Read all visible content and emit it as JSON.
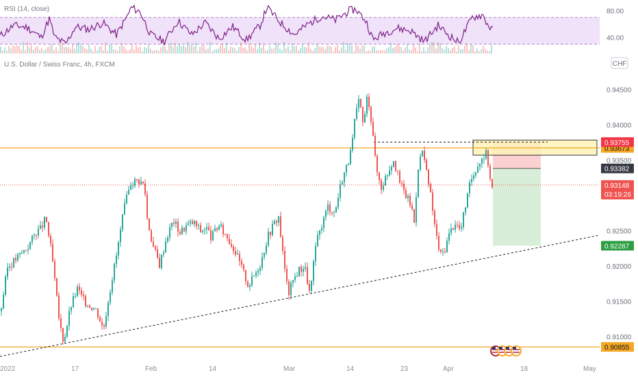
{
  "header": {
    "symbol_title": "U.S. Dollar / Swiss Franc, 4h, FXCM",
    "currency_badge": "CHF",
    "rsi_title": "RSI (14, close)"
  },
  "events_icon": "us-flag-events-icon",
  "colors": {
    "up": "#26a69a",
    "down": "#ef5350",
    "rsi_line": "#7e1f86",
    "rsi_band": "#e9d8f7",
    "level_orange": "#f5a623",
    "trend": "#131722",
    "stop_zone": "#f9c4c4",
    "target_zone": "#d5ecd4",
    "supply_zone": "#fff3b8"
  },
  "chart_data": {
    "type": "candlestick",
    "title": "U.S. Dollar / Swiss Franc, 4h, FXCM",
    "y_ticks": [
      "0.94500",
      "0.94000",
      "0.93500",
      "0.93000",
      "0.92500",
      "0.92000",
      "0.91500",
      "0.91000"
    ],
    "ylim": [
      0.9072,
      0.9468
    ],
    "x_ticks": [
      "2022",
      "17",
      "Feb",
      "14",
      "Mar",
      "14",
      "23",
      "Apr",
      "18",
      "May"
    ],
    "price_path": {
      "anchors": [
        [
          0,
          0.9136
        ],
        [
          10,
          0.9198
        ],
        [
          24,
          0.9212
        ],
        [
          40,
          0.9228
        ],
        [
          52,
          0.9249
        ],
        [
          58,
          0.9252
        ],
        [
          66,
          0.9268
        ],
        [
          75,
          0.9214
        ],
        [
          86,
          0.9118
        ],
        [
          92,
          0.9093
        ],
        [
          102,
          0.9142
        ],
        [
          112,
          0.9168
        ],
        [
          122,
          0.915
        ],
        [
          140,
          0.9138
        ],
        [
          150,
          0.911
        ],
        [
          158,
          0.9158
        ],
        [
          170,
          0.922
        ],
        [
          180,
          0.928
        ],
        [
          190,
          0.9318
        ],
        [
          200,
          0.9322
        ],
        [
          210,
          0.9315
        ],
        [
          214,
          0.9268
        ],
        [
          222,
          0.923
        ],
        [
          232,
          0.9202
        ],
        [
          242,
          0.924
        ],
        [
          252,
          0.9265
        ],
        [
          262,
          0.9248
        ],
        [
          272,
          0.9258
        ],
        [
          282,
          0.9262
        ],
        [
          292,
          0.925
        ],
        [
          300,
          0.9255
        ],
        [
          308,
          0.924
        ],
        [
          318,
          0.9258
        ],
        [
          332,
          0.924
        ],
        [
          342,
          0.9222
        ],
        [
          352,
          0.9198
        ],
        [
          362,
          0.9172
        ],
        [
          372,
          0.919
        ],
        [
          380,
          0.9205
        ],
        [
          390,
          0.9242
        ],
        [
          398,
          0.9258
        ],
        [
          406,
          0.927
        ],
        [
          412,
          0.9218
        ],
        [
          420,
          0.916
        ],
        [
          428,
          0.9182
        ],
        [
          436,
          0.9195
        ],
        [
          444,
          0.92
        ],
        [
          452,
          0.9158
        ],
        [
          460,
          0.9228
        ],
        [
          470,
          0.9262
        ],
        [
          478,
          0.9285
        ],
        [
          488,
          0.9275
        ],
        [
          498,
          0.9322
        ],
        [
          505,
          0.934
        ],
        [
          512,
          0.9362
        ],
        [
          518,
          0.9412
        ],
        [
          524,
          0.9435
        ],
        [
          530,
          0.9398
        ],
        [
          536,
          0.9445
        ],
        [
          544,
          0.9388
        ],
        [
          548,
          0.934
        ],
        [
          556,
          0.9312
        ],
        [
          564,
          0.933
        ],
        [
          574,
          0.9352
        ],
        [
          582,
          0.932
        ],
        [
          592,
          0.93
        ],
        [
          600,
          0.9285
        ],
        [
          604,
          0.9262
        ],
        [
          610,
          0.9342
        ],
        [
          616,
          0.9364
        ],
        [
          620,
          0.9342
        ],
        [
          628,
          0.93
        ],
        [
          636,
          0.9245
        ],
        [
          642,
          0.9215
        ],
        [
          648,
          0.9222
        ],
        [
          656,
          0.9248
        ],
        [
          664,
          0.9262
        ],
        [
          672,
          0.925
        ],
        [
          680,
          0.9292
        ],
        [
          688,
          0.9325
        ],
        [
          696,
          0.9342
        ],
        [
          704,
          0.9355
        ],
        [
          710,
          0.936
        ],
        [
          714,
          0.9332
        ],
        [
          718,
          0.931
        ],
        [
          720,
          0.9315
        ]
      ],
      "x_start": 0,
      "x_end": 720
    },
    "levels": [
      {
        "name": "resistance",
        "value": 0.93673,
        "label": "0.93673"
      },
      {
        "name": "support",
        "value": 0.90855,
        "label": "0.90855"
      },
      {
        "name": "zone-top",
        "value": 0.93755,
        "label": "0.93755"
      },
      {
        "name": "entry",
        "value": 0.93382,
        "label": "0.93382"
      },
      {
        "name": "current",
        "value": 0.93148,
        "label": "0.93148"
      },
      {
        "name": "target",
        "value": 0.92287,
        "label": "0.92287"
      }
    ],
    "countdown": "03:19:26",
    "rsi": {
      "y_ticks": [
        "80.00",
        "40.00"
      ],
      "ylim": [
        18,
        92
      ],
      "upper": 70,
      "lower": 30,
      "anchors": [
        [
          0,
          42
        ],
        [
          20,
          58
        ],
        [
          40,
          55
        ],
        [
          60,
          40
        ],
        [
          72,
          68
        ],
        [
          80,
          40
        ],
        [
          96,
          30
        ],
        [
          110,
          56
        ],
        [
          130,
          52
        ],
        [
          150,
          62
        ],
        [
          170,
          44
        ],
        [
          185,
          70
        ],
        [
          192,
          85
        ],
        [
          205,
          78
        ],
        [
          220,
          44
        ],
        [
          240,
          34
        ],
        [
          260,
          65
        ],
        [
          280,
          44
        ],
        [
          300,
          62
        ],
        [
          320,
          38
        ],
        [
          340,
          56
        ],
        [
          360,
          36
        ],
        [
          380,
          58
        ],
        [
          390,
          85
        ],
        [
          410,
          62
        ],
        [
          430,
          44
        ],
        [
          450,
          60
        ],
        [
          470,
          72
        ],
        [
          490,
          66
        ],
        [
          510,
          80
        ],
        [
          520,
          82
        ],
        [
          535,
          64
        ],
        [
          545,
          36
        ],
        [
          560,
          46
        ],
        [
          580,
          54
        ],
        [
          600,
          50
        ],
        [
          620,
          34
        ],
        [
          640,
          58
        ],
        [
          655,
          44
        ],
        [
          670,
          32
        ],
        [
          690,
          70
        ],
        [
          705,
          74
        ],
        [
          712,
          60
        ],
        [
          720,
          50
        ]
      ]
    }
  }
}
